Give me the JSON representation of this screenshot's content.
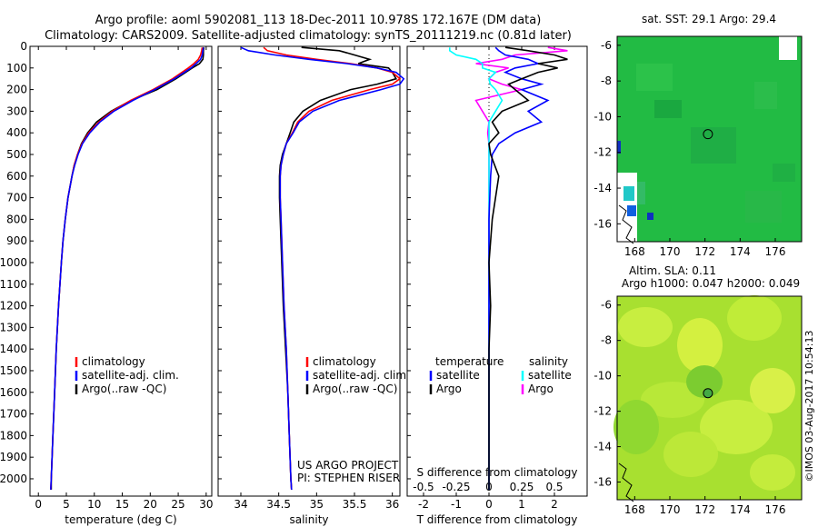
{
  "header": {
    "line1": "Argo profile: aoml 5902081_113 18-Dec-2011 10.978S 172.167E (DM data)",
    "line2": "Climatology: CARS2009. Satellite-adjusted climatology: synTS_20111219.nc (0.81d later)"
  },
  "colors": {
    "climatology": "#ff0000",
    "satellite": "#0000ff",
    "argo": "#000000",
    "argo_salinity_diff": "#ff00ff",
    "satellite_salinity_diff": "#00ffff"
  },
  "depth_axis": {
    "ticks": [
      "0",
      "100",
      "200",
      "300",
      "400",
      "500",
      "600",
      "700",
      "800",
      "900",
      "1000",
      "1100",
      "1200",
      "1300",
      "1400",
      "1500",
      "1600",
      "1700",
      "1800",
      "1900",
      "2000"
    ]
  },
  "chart_data": [
    {
      "type": "line",
      "name": "temperature-profile",
      "xlabel": "temperature (deg C)",
      "xlim": [
        -1.5,
        31
      ],
      "ylim": [
        0,
        2080
      ],
      "x_ticks": [
        "0",
        "5",
        "10",
        "15",
        "20",
        "25",
        "30"
      ],
      "legend": [
        "climatology",
        "satellite-adj. clim.",
        "Argo(..raw -QC)"
      ],
      "depth": [
        5,
        20,
        40,
        60,
        80,
        100,
        150,
        200,
        250,
        300,
        350,
        400,
        450,
        500,
        550,
        600,
        700,
        800,
        900,
        1000,
        1200,
        1400,
        1600,
        1800,
        2000,
        2050
      ],
      "series": [
        {
          "name": "climatology",
          "values": [
            29.3,
            29.2,
            29.0,
            28.6,
            27.8,
            26.8,
            24.0,
            20.5,
            16.5,
            13.2,
            10.8,
            9.0,
            7.8,
            7.0,
            6.4,
            6.0,
            5.3,
            4.8,
            4.4,
            4.1,
            3.6,
            3.2,
            2.9,
            2.6,
            2.3,
            2.2
          ]
        },
        {
          "name": "satellite",
          "values": [
            29.5,
            29.4,
            29.3,
            29.0,
            28.2,
            27.3,
            24.3,
            20.8,
            16.9,
            13.5,
            11.0,
            9.2,
            7.9,
            7.1,
            6.5,
            6.0,
            5.3,
            4.8,
            4.4,
            4.1,
            3.6,
            3.2,
            2.9,
            2.6,
            2.3,
            2.2
          ]
        },
        {
          "name": "argo",
          "values": [
            29.6,
            29.5,
            29.5,
            29.4,
            28.8,
            27.5,
            24.6,
            21.2,
            16.6,
            13.0,
            10.4,
            8.8,
            7.7,
            7.0,
            6.4,
            6.0,
            5.3,
            4.8,
            4.4,
            4.1,
            3.6,
            3.2,
            2.9,
            2.6,
            2.3,
            2.3
          ]
        }
      ]
    },
    {
      "type": "line",
      "name": "salinity-profile",
      "xlabel": "salinity",
      "xlim": [
        33.7,
        36.1
      ],
      "ylim": [
        0,
        2080
      ],
      "x_ticks": [
        "34",
        "34.5",
        "35",
        "35.5",
        "36"
      ],
      "legend": [
        "climatology",
        "satellite-adj. clim.",
        "Argo(..raw -QC)"
      ],
      "note": [
        "US ARGO PROJECT",
        "PI: STEPHEN RISER"
      ],
      "depth": [
        5,
        20,
        40,
        60,
        80,
        100,
        120,
        150,
        175,
        200,
        250,
        300,
        350,
        400,
        450,
        500,
        550,
        600,
        700,
        800,
        1000,
        1200,
        1400,
        1600,
        1800,
        2000,
        2050
      ],
      "series": [
        {
          "name": "climatology",
          "values": [
            34.3,
            34.35,
            34.6,
            35.0,
            35.45,
            35.8,
            36.0,
            36.1,
            36.0,
            35.7,
            35.2,
            34.9,
            34.75,
            34.68,
            34.6,
            34.56,
            34.53,
            34.52,
            34.52,
            34.53,
            34.55,
            34.57,
            34.6,
            34.62,
            34.64,
            34.66,
            34.67
          ]
        },
        {
          "name": "satellite",
          "values": [
            34.0,
            34.1,
            34.45,
            34.9,
            35.4,
            35.8,
            36.05,
            36.15,
            36.1,
            35.85,
            35.3,
            34.95,
            34.77,
            34.69,
            34.6,
            34.56,
            34.53,
            34.52,
            34.52,
            34.53,
            34.55,
            34.57,
            34.6,
            34.62,
            34.64,
            34.66,
            34.67
          ]
        },
        {
          "name": "argo",
          "values": [
            34.8,
            35.3,
            35.5,
            35.7,
            35.55,
            35.95,
            36.0,
            36.05,
            35.8,
            35.45,
            35.05,
            34.82,
            34.7,
            34.65,
            34.6,
            34.55,
            34.52,
            34.51,
            34.51,
            34.52,
            34.54,
            34.56,
            34.59,
            34.62,
            34.64,
            34.66,
            34.67
          ]
        }
      ]
    },
    {
      "type": "line",
      "name": "difference-profile",
      "xlabel": "T difference from climatology",
      "xlabel_top": "S difference from climatology",
      "xlim": [
        -2.5,
        3.0
      ],
      "ylim": [
        0,
        2080
      ],
      "x_ticks_bottom": [
        "-2",
        "-1",
        "0",
        "1",
        "2"
      ],
      "x_ticks_top": [
        "-0.5",
        "-0.25",
        "0",
        "0.25",
        "0.5"
      ],
      "legend_temperature": [
        "temperature",
        "satellite",
        "Argo"
      ],
      "legend_salinity": [
        "salinity",
        "satellite",
        "Argo"
      ],
      "depth": [
        5,
        20,
        40,
        60,
        80,
        100,
        120,
        150,
        175,
        200,
        250,
        300,
        350,
        400,
        450,
        500,
        600,
        800,
        1000,
        1200,
        1400,
        1600,
        1800,
        2000,
        2050
      ],
      "series": [
        {
          "name": "T satellite",
          "values": [
            0.2,
            0.3,
            0.5,
            1.2,
            1.5,
            0.8,
            0.5,
            1.0,
            1.6,
            1.0,
            1.8,
            1.2,
            1.6,
            0.8,
            0.3,
            0.1,
            0.05,
            0.0,
            0.0,
            0.0,
            0.0,
            0.0,
            0.0,
            0.0,
            0.0
          ]
        },
        {
          "name": "T Argo",
          "values": [
            0.5,
            1.2,
            2.0,
            2.4,
            1.5,
            2.1,
            1.5,
            1.0,
            0.6,
            0.8,
            1.2,
            0.4,
            0.1,
            0.3,
            0.0,
            0.05,
            0.3,
            0.1,
            0.0,
            0.05,
            0.0,
            0.0,
            0.0,
            0.0,
            0.0
          ]
        },
        {
          "name": "S satellite",
          "values": [
            -0.3,
            -0.3,
            -0.25,
            -0.1,
            -0.05,
            -0.05,
            0.05,
            0.0,
            0.01,
            0.05,
            0.1,
            0.05,
            0.0,
            0.0,
            0.0,
            0.0,
            0.0,
            0.0,
            0.0,
            0.0,
            0.0,
            0.0,
            0.0,
            0.0,
            0.0
          ]
        },
        {
          "name": "S Argo",
          "values": [
            0.45,
            0.6,
            0.2,
            0.1,
            -0.1,
            0.15,
            0.05,
            0.0,
            0.1,
            0.25,
            -0.1,
            -0.05,
            0.0,
            -0.01,
            0.0,
            0.0,
            0.0,
            0.0,
            0.0,
            0.0,
            0.0,
            0.0,
            0.0,
            0.0,
            0.0
          ]
        }
      ]
    },
    {
      "type": "heatmap",
      "name": "sst-map",
      "title": "sat. SST: 29.1  Argo: 29.4",
      "xlim": [
        167,
        177.5
      ],
      "ylim": [
        -17,
        -5.5
      ],
      "x_ticks": [
        "168",
        "170",
        "172",
        "174",
        "176"
      ],
      "y_ticks": [
        "-6",
        "-8",
        "-10",
        "-12",
        "-14",
        "-16"
      ],
      "marker": {
        "lon": 172.167,
        "lat": -10.978
      }
    },
    {
      "type": "heatmap",
      "name": "sla-map",
      "title": "Altim. SLA: 0.11",
      "subtitle": "Argo h1000: 0.047 h2000: 0.049",
      "xlim": [
        167,
        177.5
      ],
      "ylim": [
        -17,
        -5.5
      ],
      "x_ticks": [
        "168",
        "170",
        "172",
        "174",
        "176"
      ],
      "y_ticks": [
        "-6",
        "-8",
        "-10",
        "-12",
        "-14",
        "-16"
      ],
      "marker": {
        "lon": 172.167,
        "lat": -10.978
      }
    }
  ],
  "credit": "©IMOS 03-Aug-2017 10:54:13"
}
